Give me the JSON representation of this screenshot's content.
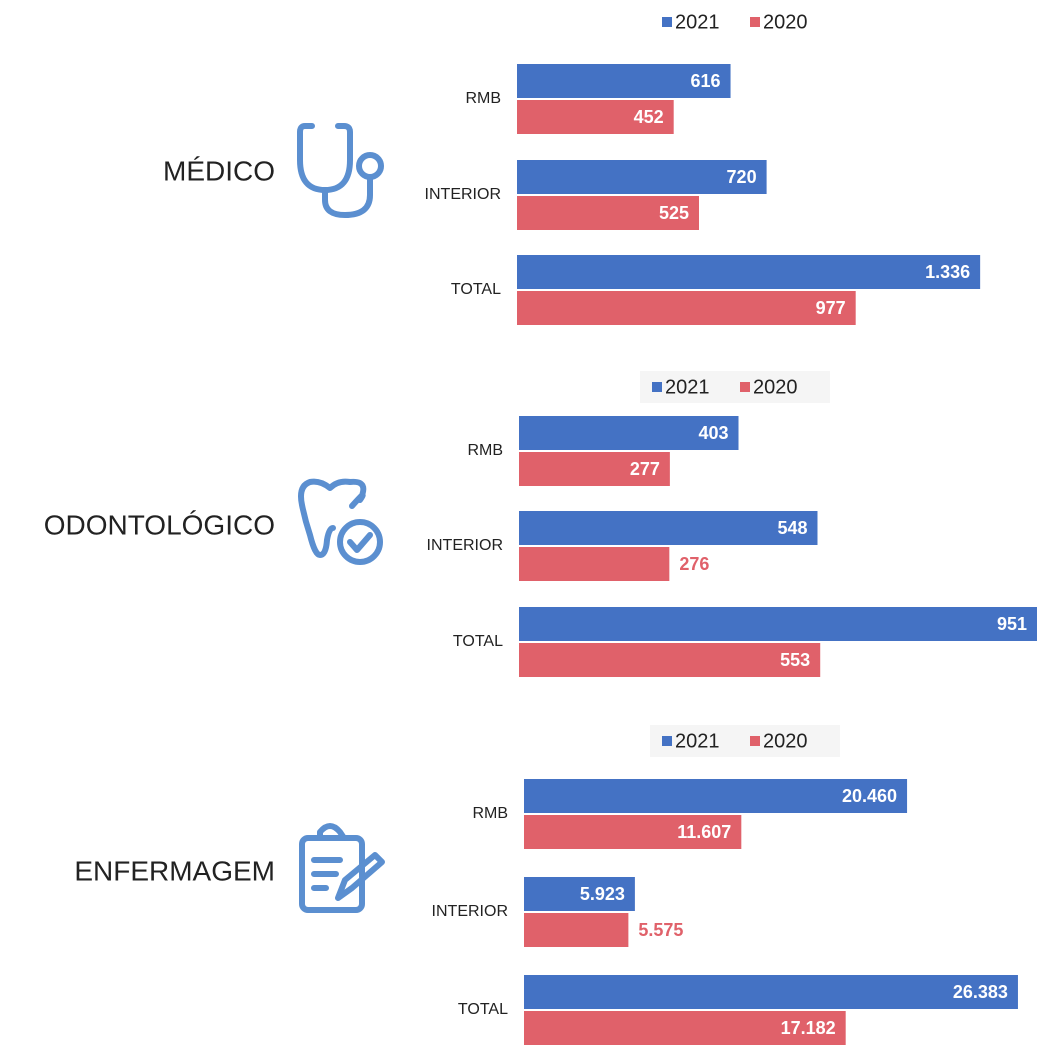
{
  "chart_data": [
    {
      "type": "bar",
      "orientation": "horizontal",
      "title": "MÉDICO",
      "categories": [
        "RMB",
        "INTERIOR",
        "TOTAL"
      ],
      "series": [
        {
          "name": "2021",
          "color": "#4472c4",
          "values": [
            616,
            720,
            1336
          ],
          "value_labels": [
            "616",
            "720",
            "1.336"
          ],
          "label_positions": [
            "inside",
            "inside",
            "inside"
          ]
        },
        {
          "name": "2020",
          "color": "#e0616a",
          "values": [
            452,
            525,
            977
          ],
          "value_labels": [
            "452",
            "525",
            "977"
          ],
          "label_positions": [
            "inside",
            "inside",
            "inside"
          ]
        }
      ],
      "xlim": [
        0,
        1500
      ]
    },
    {
      "type": "bar",
      "orientation": "horizontal",
      "title": "ODONTOLÓGICO",
      "categories": [
        "RMB",
        "INTERIOR",
        "TOTAL"
      ],
      "series": [
        {
          "name": "2021",
          "color": "#4472c4",
          "values": [
            403,
            548,
            951
          ],
          "value_labels": [
            "403",
            "548",
            "951"
          ],
          "label_positions": [
            "inside",
            "inside",
            "inside"
          ]
        },
        {
          "name": "2020",
          "color": "#e0616a",
          "values": [
            277,
            276,
            553
          ],
          "value_labels": [
            "277",
            "276",
            "553"
          ],
          "label_positions": [
            "inside",
            "outside",
            "inside"
          ]
        }
      ],
      "xlim": [
        0,
        951
      ]
    },
    {
      "type": "bar",
      "orientation": "horizontal",
      "title": "ENFERMAGEM",
      "categories": [
        "RMB",
        "INTERIOR",
        "TOTAL"
      ],
      "series": [
        {
          "name": "2021",
          "color": "#4472c4",
          "values": [
            20460,
            5923,
            26383
          ],
          "value_labels": [
            "20.460",
            "5.923",
            "26.383"
          ],
          "label_positions": [
            "inside",
            "inside",
            "inside"
          ]
        },
        {
          "name": "2020",
          "color": "#e0616a",
          "values": [
            11607,
            5575,
            17182
          ],
          "value_labels": [
            "11.607",
            "5.575",
            "17.182"
          ],
          "label_positions": [
            "inside",
            "outside",
            "inside"
          ]
        }
      ],
      "xlim": [
        0,
        27400
      ]
    }
  ]
}
